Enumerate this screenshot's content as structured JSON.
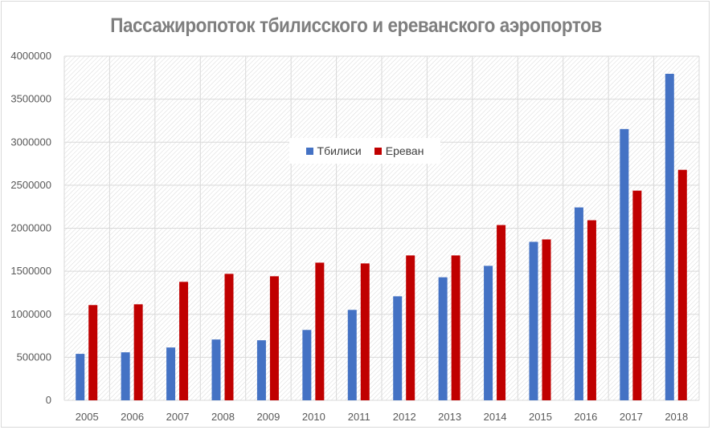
{
  "chart_data": {
    "type": "bar",
    "title": "Пассажиропоток тбилисского и ереванского аэропортов",
    "xlabel": "",
    "ylabel": "",
    "ylim": [
      0,
      4000000
    ],
    "yticks": [
      "0",
      "500000",
      "1000000",
      "1500000",
      "2000000",
      "2500000",
      "3000000",
      "3500000",
      "4000000"
    ],
    "grid": true,
    "legend_position": "center",
    "categories": [
      "2005",
      "2006",
      "2007",
      "2008",
      "2009",
      "2010",
      "2011",
      "2012",
      "2013",
      "2014",
      "2015",
      "2016",
      "2017",
      "2018"
    ],
    "series": [
      {
        "name": "Тбилиси",
        "color": "#4472c4",
        "values": [
          540000,
          558000,
          614000,
          707000,
          698000,
          818000,
          1051000,
          1209000,
          1430000,
          1563000,
          1842000,
          2242000,
          3153000,
          3795000
        ]
      },
      {
        "name": "Ереван",
        "color": "#c00000",
        "values": [
          1107000,
          1116000,
          1377000,
          1470000,
          1442000,
          1600000,
          1591000,
          1684000,
          1684000,
          2037000,
          1870000,
          2093000,
          2437000,
          2679000
        ]
      }
    ]
  }
}
